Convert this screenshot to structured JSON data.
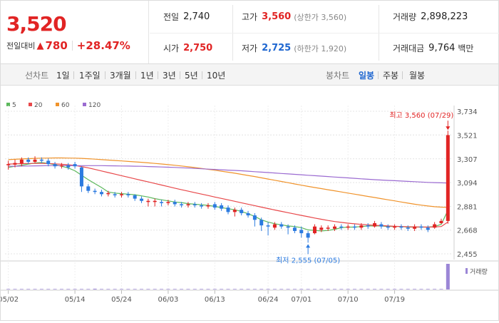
{
  "quote": {
    "price": "3,520",
    "change_label": "전일대비",
    "change_arrow": "▲",
    "change_amount": "780",
    "change_pct": "+28.47%"
  },
  "stats": {
    "prev_label": "전일",
    "prev_value": "2,740",
    "open_label": "시가",
    "open_value": "2,750",
    "high_label": "고가",
    "high_value": "3,560",
    "high_sub": "(상한가 3,560)",
    "low_label": "저가",
    "low_value": "2,725",
    "low_sub": "(하한가 1,920)",
    "volume_label": "거래량",
    "volume_value": "2,898,223",
    "amount_label": "거래대금",
    "amount_value": "9,764",
    "amount_unit": "백만"
  },
  "line_tabs": {
    "label": "선차트",
    "items": [
      "1일",
      "1주일",
      "3개월",
      "1년",
      "3년",
      "5년",
      "10년"
    ]
  },
  "candle_tabs": {
    "label": "봉차트",
    "items": [
      "일봉",
      "주봉",
      "월봉"
    ],
    "active": "일봉"
  },
  "colors": {
    "up": "#e12424",
    "down": "#2c7be0",
    "ma5": "#5cb85c",
    "ma20": "#e8484a",
    "ma60": "#f0932b",
    "ma120": "#9b6bd1"
  },
  "chart_data": {
    "type": "candlestick",
    "legend": [
      "5",
      "20",
      "60",
      "120"
    ],
    "y_ticks": [
      "3,734",
      "3,521",
      "3,307",
      "3,094",
      "2,881",
      "2,668",
      "2,455"
    ],
    "ylim": [
      2455,
      3734
    ],
    "x_ticks": [
      "05/02",
      "05/14",
      "05/24",
      "06/03",
      "06/13",
      "06/24",
      "07/01",
      "07/10",
      "07/19"
    ],
    "x_tick_index": [
      0,
      10,
      17,
      24,
      31,
      39,
      44,
      51,
      58
    ],
    "high_annotation": "최고 3,560 (07/29)",
    "low_annotation": "최저 2,555 (07/05)",
    "volume_label": "거래량",
    "candles": [
      {
        "o": 3250,
        "c": 3260,
        "h": 3290,
        "l": 3210
      },
      {
        "o": 3255,
        "c": 3270,
        "h": 3300,
        "l": 3230
      },
      {
        "o": 3265,
        "c": 3300,
        "h": 3320,
        "l": 3240
      },
      {
        "o": 3300,
        "c": 3280,
        "h": 3320,
        "l": 3260
      },
      {
        "o": 3280,
        "c": 3300,
        "h": 3330,
        "l": 3270
      },
      {
        "o": 3300,
        "c": 3290,
        "h": 3320,
        "l": 3270
      },
      {
        "o": 3290,
        "c": 3260,
        "h": 3310,
        "l": 3240
      },
      {
        "o": 3260,
        "c": 3240,
        "h": 3280,
        "l": 3220
      },
      {
        "o": 3240,
        "c": 3250,
        "h": 3270,
        "l": 3220
      },
      {
        "o": 3250,
        "c": 3230,
        "h": 3270,
        "l": 3210
      },
      {
        "o": 3260,
        "c": 3240,
        "h": 3280,
        "l": 3220
      },
      {
        "o": 3230,
        "c": 3060,
        "h": 3240,
        "l": 3010
      },
      {
        "o": 3060,
        "c": 3020,
        "h": 3080,
        "l": 3000
      },
      {
        "o": 3020,
        "c": 3010,
        "h": 3040,
        "l": 2990
      },
      {
        "o": 3010,
        "c": 2990,
        "h": 3030,
        "l": 2970
      },
      {
        "o": 2990,
        "c": 3000,
        "h": 3020,
        "l": 2970
      },
      {
        "o": 2990,
        "c": 2980,
        "h": 3010,
        "l": 2960
      },
      {
        "o": 2980,
        "c": 2990,
        "h": 3010,
        "l": 2960
      },
      {
        "o": 2990,
        "c": 2980,
        "h": 3010,
        "l": 2960
      },
      {
        "o": 2980,
        "c": 2950,
        "h": 2990,
        "l": 2930
      },
      {
        "o": 2950,
        "c": 2930,
        "h": 2970,
        "l": 2910
      },
      {
        "o": 2920,
        "c": 2930,
        "h": 2950,
        "l": 2880
      },
      {
        "o": 2920,
        "c": 2930,
        "h": 2950,
        "l": 2880
      },
      {
        "o": 2920,
        "c": 2910,
        "h": 2940,
        "l": 2880
      },
      {
        "o": 2910,
        "c": 2920,
        "h": 2940,
        "l": 2890
      },
      {
        "o": 2920,
        "c": 2900,
        "h": 2940,
        "l": 2880
      },
      {
        "o": 2900,
        "c": 2890,
        "h": 2920,
        "l": 2870
      },
      {
        "o": 2890,
        "c": 2900,
        "h": 2920,
        "l": 2870
      },
      {
        "o": 2900,
        "c": 2890,
        "h": 2920,
        "l": 2870
      },
      {
        "o": 2890,
        "c": 2880,
        "h": 2910,
        "l": 2860
      },
      {
        "o": 2880,
        "c": 2890,
        "h": 2910,
        "l": 2860
      },
      {
        "o": 2900,
        "c": 2870,
        "h": 2920,
        "l": 2850
      },
      {
        "o": 2890,
        "c": 2860,
        "h": 2910,
        "l": 2840
      },
      {
        "o": 2870,
        "c": 2830,
        "h": 2890,
        "l": 2810
      },
      {
        "o": 2830,
        "c": 2850,
        "h": 2870,
        "l": 2790
      },
      {
        "o": 2850,
        "c": 2820,
        "h": 2870,
        "l": 2800
      },
      {
        "o": 2820,
        "c": 2800,
        "h": 2840,
        "l": 2780
      },
      {
        "o": 2800,
        "c": 2760,
        "h": 2820,
        "l": 2700
      },
      {
        "o": 2760,
        "c": 2710,
        "h": 2780,
        "l": 2660
      },
      {
        "o": 2710,
        "c": 2700,
        "h": 2740,
        "l": 2620
      },
      {
        "o": 2690,
        "c": 2720,
        "h": 2740,
        "l": 2670
      },
      {
        "o": 2720,
        "c": 2700,
        "h": 2740,
        "l": 2680
      },
      {
        "o": 2700,
        "c": 2690,
        "h": 2720,
        "l": 2630
      },
      {
        "o": 2690,
        "c": 2660,
        "h": 2710,
        "l": 2640
      },
      {
        "o": 2670,
        "c": 2640,
        "h": 2700,
        "l": 2600
      },
      {
        "o": 2640,
        "c": 2600,
        "h": 2660,
        "l": 2555
      },
      {
        "o": 2640,
        "c": 2700,
        "h": 2720,
        "l": 2630
      },
      {
        "o": 2670,
        "c": 2690,
        "h": 2710,
        "l": 2650
      },
      {
        "o": 2680,
        "c": 2690,
        "h": 2710,
        "l": 2660
      },
      {
        "o": 2680,
        "c": 2700,
        "h": 2720,
        "l": 2660
      },
      {
        "o": 2700,
        "c": 2690,
        "h": 2720,
        "l": 2670
      },
      {
        "o": 2690,
        "c": 2700,
        "h": 2720,
        "l": 2670
      },
      {
        "o": 2700,
        "c": 2690,
        "h": 2720,
        "l": 2670
      },
      {
        "o": 2690,
        "c": 2710,
        "h": 2730,
        "l": 2670
      },
      {
        "o": 2710,
        "c": 2700,
        "h": 2730,
        "l": 2680
      },
      {
        "o": 2700,
        "c": 2730,
        "h": 2750,
        "l": 2690
      },
      {
        "o": 2720,
        "c": 2700,
        "h": 2740,
        "l": 2680
      },
      {
        "o": 2700,
        "c": 2690,
        "h": 2720,
        "l": 2670
      },
      {
        "o": 2690,
        "c": 2700,
        "h": 2720,
        "l": 2670
      },
      {
        "o": 2700,
        "c": 2690,
        "h": 2720,
        "l": 2670
      },
      {
        "o": 2690,
        "c": 2680,
        "h": 2710,
        "l": 2660
      },
      {
        "o": 2680,
        "c": 2700,
        "h": 2720,
        "l": 2660
      },
      {
        "o": 2700,
        "c": 2690,
        "h": 2720,
        "l": 2670
      },
      {
        "o": 2690,
        "c": 2670,
        "h": 2710,
        "l": 2650
      },
      {
        "o": 2690,
        "c": 2720,
        "h": 2740,
        "l": 2680
      },
      {
        "o": 2730,
        "c": 2750,
        "h": 2770,
        "l": 2725
      },
      {
        "o": 2750,
        "c": 3520,
        "h": 3560,
        "l": 2725
      }
    ],
    "series": [
      {
        "name": "5",
        "values": [
          3230,
          3240,
          3250,
          3260,
          3270,
          3275,
          3265,
          3255,
          3240,
          3225,
          3200,
          3160,
          3120,
          3085,
          3050,
          3010,
          3000,
          2995,
          2990,
          2985,
          2975,
          2965,
          2950,
          2940,
          2930,
          2920,
          2915,
          2905,
          2900,
          2895,
          2890,
          2880,
          2870,
          2860,
          2850,
          2835,
          2815,
          2790,
          2760,
          2740,
          2725,
          2715,
          2705,
          2700,
          2690,
          2670,
          2665,
          2660,
          2665,
          2675,
          2690,
          2695,
          2695,
          2700,
          2705,
          2705,
          2705,
          2700,
          2700,
          2700,
          2695,
          2695,
          2695,
          2695,
          2700,
          2720,
          2845
        ]
      },
      {
        "name": "20",
        "values": [
          3260,
          3262,
          3264,
          3265,
          3266,
          3266,
          3265,
          3262,
          3258,
          3254,
          3248,
          3238,
          3226,
          3212,
          3198,
          3184,
          3170,
          3156,
          3142,
          3128,
          3114,
          3100,
          3086,
          3072,
          3058,
          3044,
          3030,
          3017,
          3004,
          2991,
          2978,
          2965,
          2952,
          2939,
          2926,
          2913,
          2900,
          2887,
          2874,
          2861,
          2848,
          2836,
          2824,
          2812,
          2800,
          2788,
          2776,
          2765,
          2754,
          2745,
          2737,
          2730,
          2724,
          2719,
          2715,
          2711,
          2708,
          2705,
          2702,
          2700,
          2698,
          2697,
          2696,
          2695,
          2696,
          2700,
          2740
        ]
      },
      {
        "name": "60",
        "values": [
          3300,
          3303,
          3306,
          3309,
          3311,
          3313,
          3314,
          3315,
          3315,
          3314,
          3313,
          3311,
          3308,
          3304,
          3300,
          3296,
          3292,
          3288,
          3284,
          3280,
          3276,
          3271,
          3266,
          3261,
          3255,
          3249,
          3243,
          3236,
          3229,
          3221,
          3213,
          3205,
          3196,
          3187,
          3178,
          3168,
          3158,
          3148,
          3137,
          3126,
          3115,
          3104,
          3093,
          3082,
          3071,
          3060,
          3050,
          3040,
          3030,
          3020,
          3010,
          3000,
          2990,
          2980,
          2970,
          2960,
          2950,
          2940,
          2930,
          2920,
          2910,
          2900,
          2892,
          2884,
          2878,
          2874,
          2872
        ]
      },
      {
        "name": "120",
        "values": [
          3240,
          3241,
          3242,
          3243,
          3244,
          3245,
          3246,
          3246,
          3246,
          3246,
          3246,
          3246,
          3246,
          3246,
          3246,
          3245,
          3244,
          3243,
          3242,
          3241,
          3240,
          3238,
          3236,
          3234,
          3232,
          3230,
          3227,
          3224,
          3221,
          3218,
          3215,
          3212,
          3209,
          3206,
          3203,
          3200,
          3196,
          3192,
          3188,
          3184,
          3180,
          3176,
          3172,
          3168,
          3164,
          3160,
          3156,
          3152,
          3148,
          3144,
          3140,
          3136,
          3132,
          3128,
          3124,
          3120,
          3117,
          3114,
          3111,
          3108,
          3105,
          3102,
          3099,
          3096,
          3094,
          3092,
          3090
        ]
      }
    ],
    "volume": [
      0.02,
      0.02,
      0.02,
      0.02,
      0.02,
      0.02,
      0.02,
      0.02,
      0.02,
      0.02,
      0.02,
      0.02,
      0.02,
      0.03,
      0.02,
      0.02,
      0.02,
      0.02,
      0.02,
      0.02,
      0.02,
      0.02,
      0.02,
      0.02,
      0.02,
      0.02,
      0.02,
      0.02,
      0.02,
      0.02,
      0.02,
      0.02,
      0.02,
      0.02,
      0.02,
      0.02,
      0.02,
      0.02,
      0.02,
      0.02,
      0.02,
      0.02,
      0.02,
      0.02,
      0.02,
      0.02,
      0.02,
      0.02,
      0.02,
      0.02,
      0.02,
      0.02,
      0.02,
      0.02,
      0.02,
      0.02,
      0.02,
      0.02,
      0.02,
      0.02,
      0.02,
      0.02,
      0.02,
      0.02,
      0.02,
      0.02,
      1.0
    ]
  }
}
